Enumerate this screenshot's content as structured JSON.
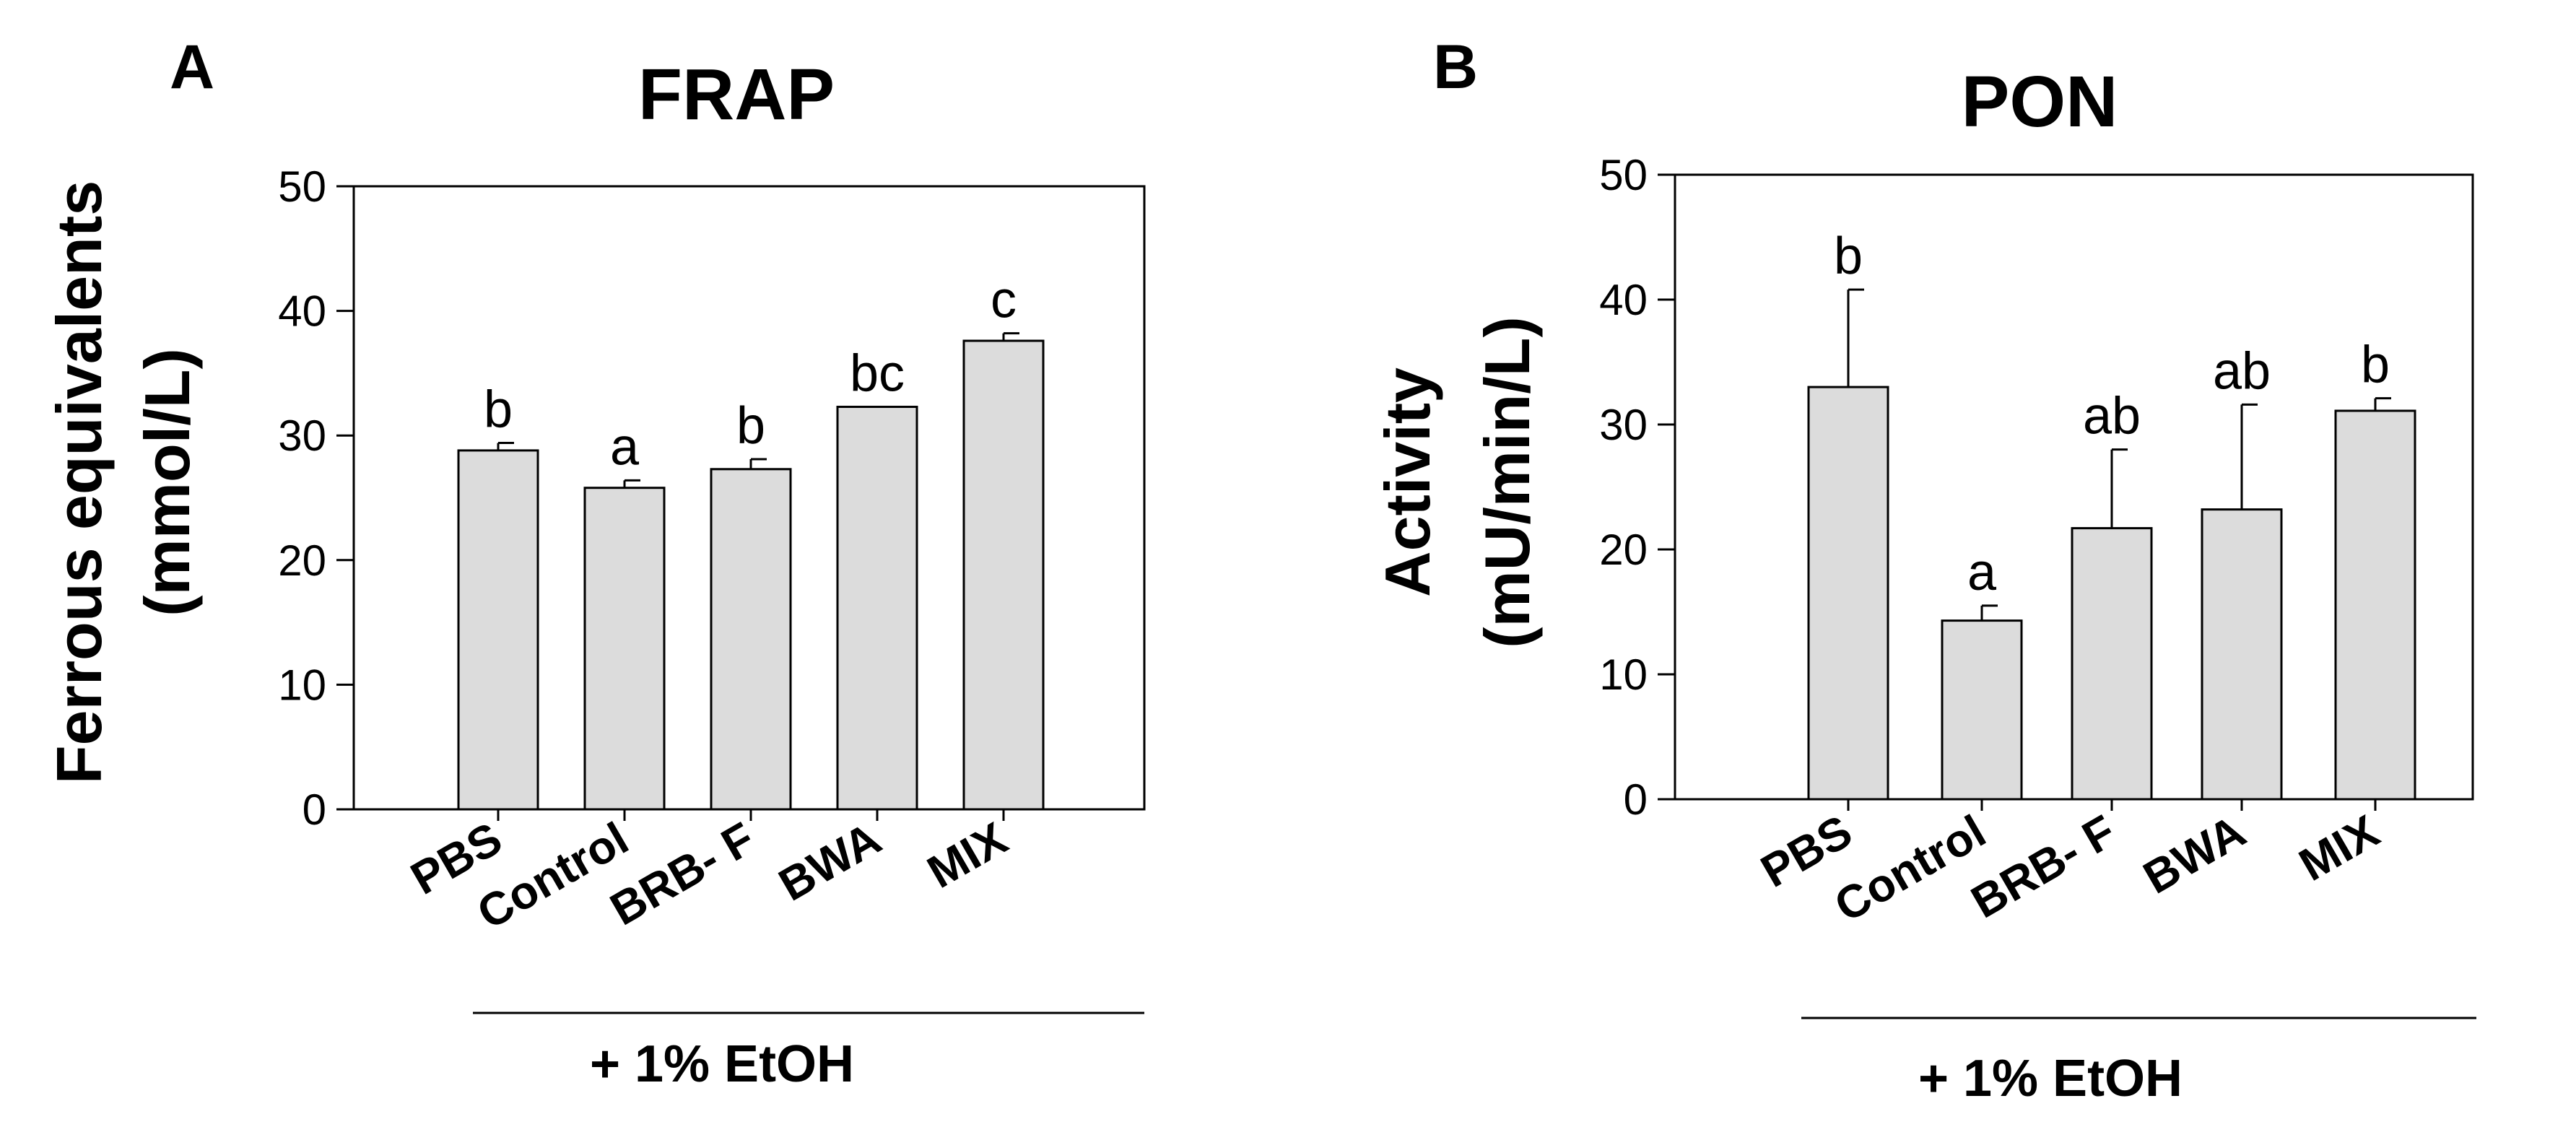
{
  "chart_data": [
    {
      "type": "bar",
      "panel": "A",
      "title": "FRAP",
      "ylabel_lines": [
        "Ferrous equivalents",
        "(mmol/L)"
      ],
      "xlabel": "",
      "ylim": [
        0,
        50
      ],
      "yticks": [
        0,
        10,
        20,
        30,
        40,
        50
      ],
      "categories": [
        "PBS",
        "Control",
        "BRB- F",
        "BWA",
        "MIX"
      ],
      "values": [
        28.8,
        25.8,
        27.3,
        32.3,
        37.6
      ],
      "errors": [
        0.6,
        0.6,
        0.8,
        0.0,
        0.6
      ],
      "significance": [
        "b",
        "a",
        "b",
        "bc",
        "c"
      ],
      "group_label": "+ 1% EtOH",
      "group_categories": [
        "Control",
        "BRB- F",
        "BWA",
        "MIX"
      ],
      "bar_color": "#dcdcdc"
    },
    {
      "type": "bar",
      "panel": "B",
      "title": "PON",
      "ylabel_lines": [
        "Activity",
        "(mU/min/L)"
      ],
      "xlabel": "",
      "ylim": [
        0,
        50
      ],
      "yticks": [
        0,
        10,
        20,
        30,
        40,
        50
      ],
      "categories": [
        "PBS",
        "Control",
        "BRB- F",
        "BWA",
        "MIX"
      ],
      "values": [
        33.0,
        14.3,
        21.7,
        23.2,
        31.1
      ],
      "errors": [
        7.8,
        1.2,
        6.3,
        8.4,
        1.0
      ],
      "significance": [
        "b",
        "a",
        "ab",
        "ab",
        "b"
      ],
      "group_label": "+ 1% EtOH",
      "group_categories": [
        "Control",
        "BRB- F",
        "BWA",
        "MIX"
      ],
      "bar_color": "#dcdcdc"
    }
  ]
}
